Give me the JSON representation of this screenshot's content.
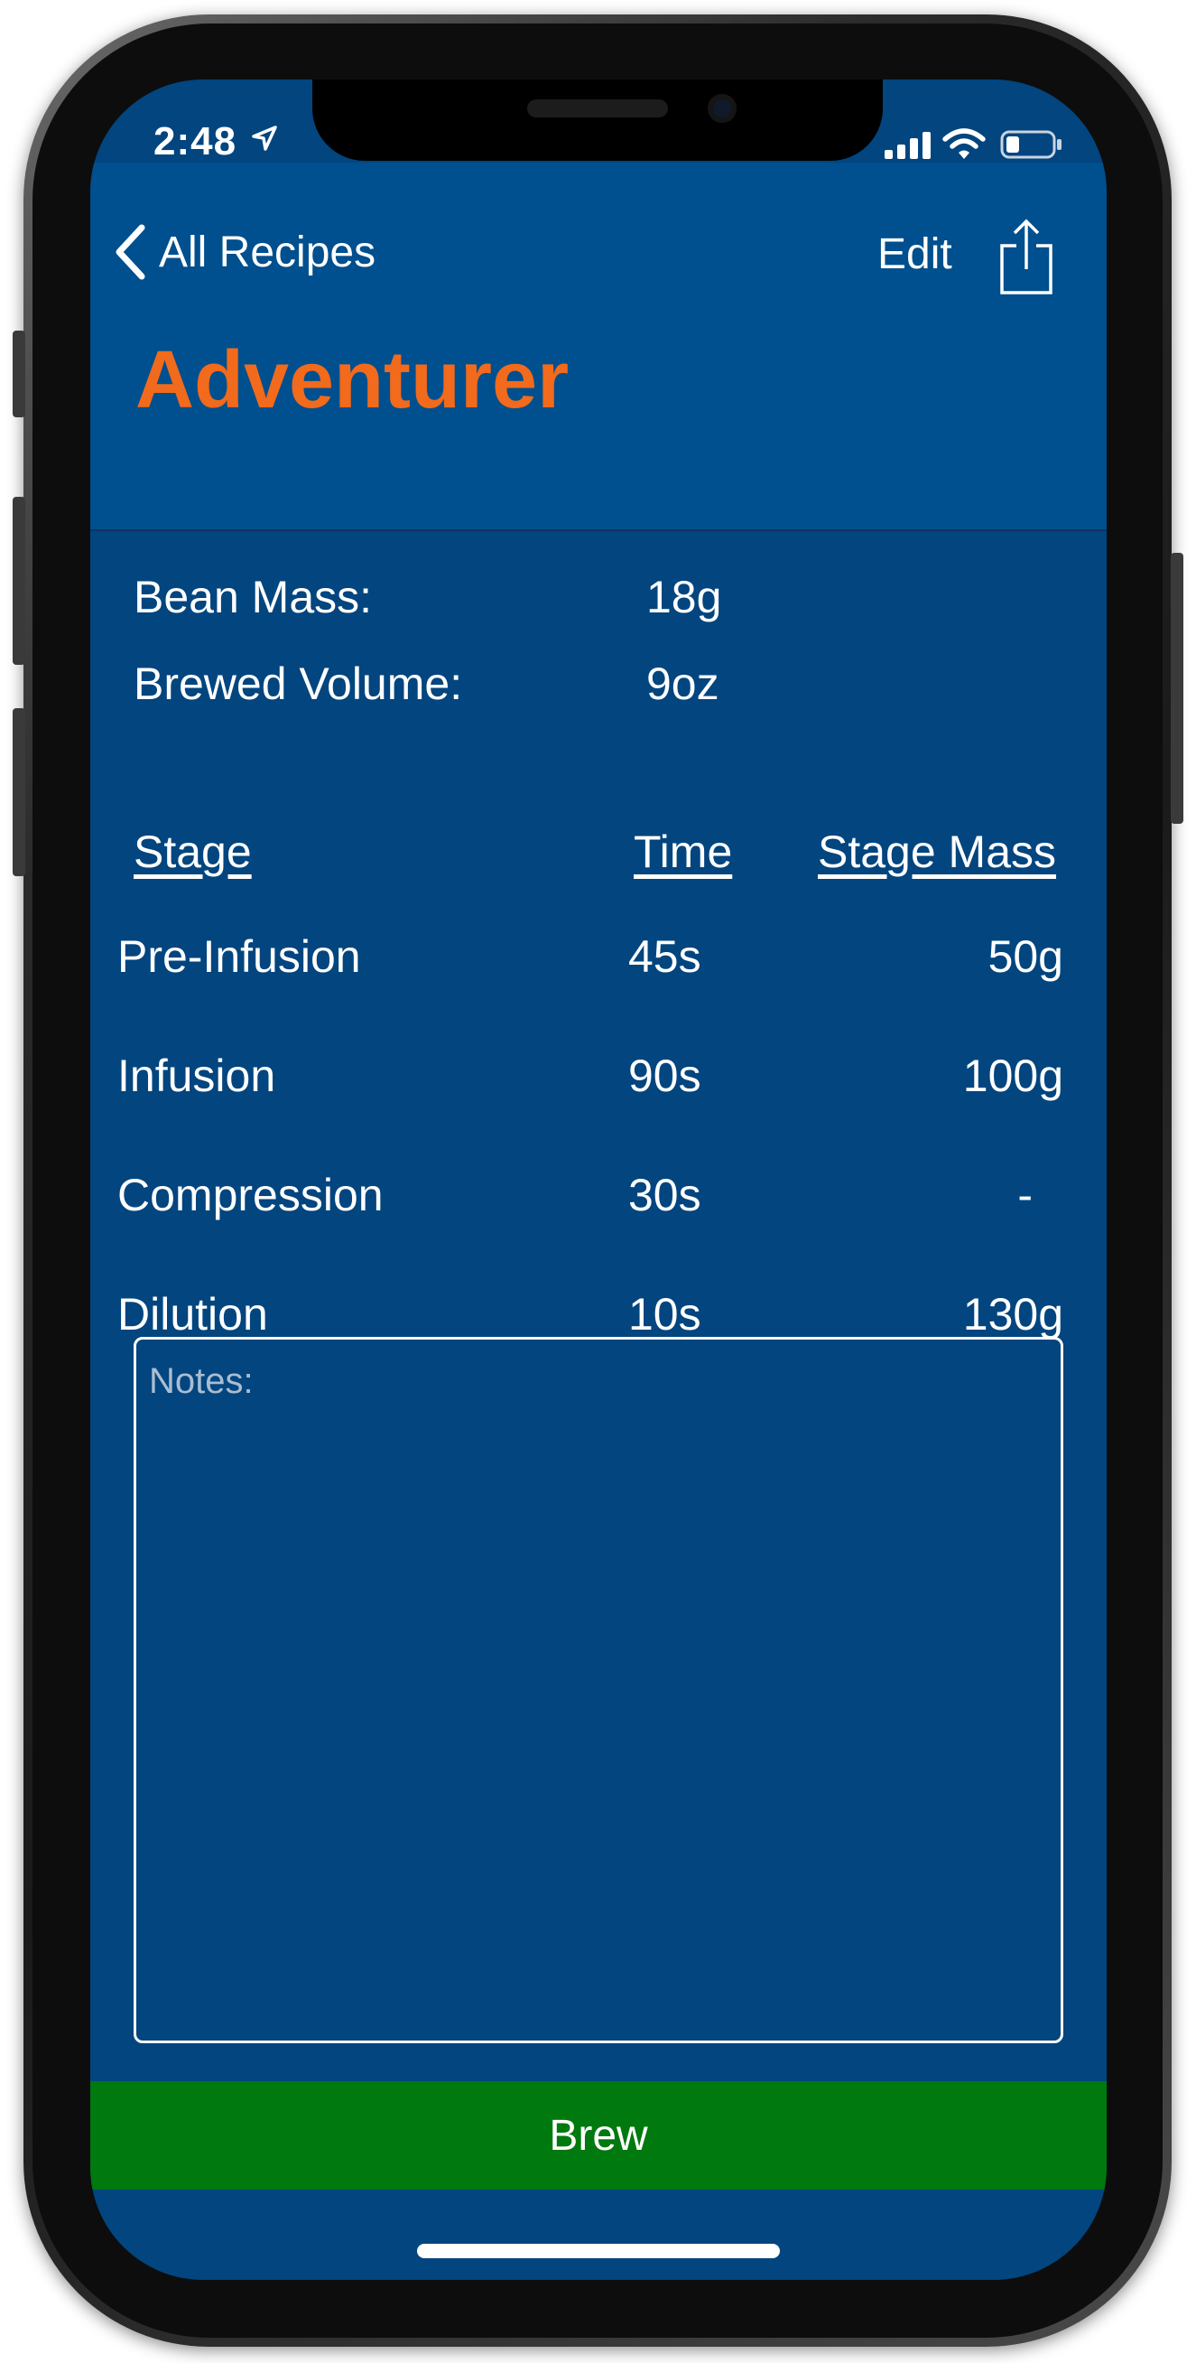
{
  "status_bar": {
    "time": "2:48"
  },
  "nav": {
    "back_label": "All Recipes",
    "edit_label": "Edit"
  },
  "recipe": {
    "title": "Adventurer",
    "bean_mass_label": "Bean Mass:",
    "bean_mass_value": "18g",
    "brewed_volume_label": "Brewed Volume:",
    "brewed_volume_value": "9oz"
  },
  "stages": {
    "headers": {
      "stage": "Stage",
      "time": "Time",
      "mass": "Stage Mass"
    },
    "rows": [
      {
        "stage": "Pre-Infusion",
        "time": "45s",
        "mass": "50g"
      },
      {
        "stage": "Infusion",
        "time": "90s",
        "mass": "100g"
      },
      {
        "stage": "Compression",
        "time": "30s",
        "mass": "-"
      },
      {
        "stage": "Dilution",
        "time": "10s",
        "mass": "130g"
      }
    ]
  },
  "notes": {
    "placeholder": "Notes:"
  },
  "brew_button": {
    "label": "Brew"
  },
  "colors": {
    "background": "#02457f",
    "nav_background": "#004f8e",
    "title_orange": "#f26a1b",
    "brew_green": "#00790e",
    "text": "#ffffff"
  },
  "icons": [
    "location-arrow-icon",
    "signal-icon",
    "wifi-icon",
    "battery-icon",
    "chevron-left-icon",
    "share-icon"
  ]
}
